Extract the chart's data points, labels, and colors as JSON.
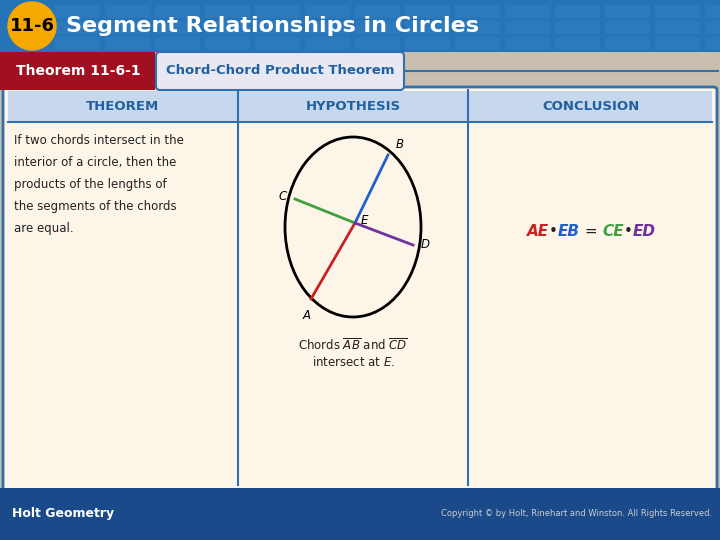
{
  "title": "Segment Relationships in Circles",
  "title_badge": "11-6",
  "header_bg": "#2574b8",
  "badge_color": "#f5a800",
  "theorem_label": "Theorem 11-6-1",
  "theorem_label_bg": "#a01020",
  "theorem_name": "Chord-Chord Product Theorem",
  "col_headers": [
    "THEOREM",
    "HYPOTHESIS",
    "CONCLUSION"
  ],
  "col_header_color": "#2060a0",
  "col_header_bg": "#d0dff0",
  "table_bg": "#fdf5e8",
  "theorem_text_lines": [
    "If two chords intersect in the",
    "interior of a circle, then the",
    "products of the lengths of",
    "the segments of the chords",
    "are equal."
  ],
  "footer_text": "Holt Geometry",
  "footer_bg": "#1a4a8a",
  "copyright_text": "Copyright © by Holt, Rinehart and Winston. All Rights Reserved.",
  "color_AE": "#cc2020",
  "color_EB": "#2060cc",
  "color_CE": "#40a040",
  "color_ED": "#7030a0",
  "outside_bg": "#c8bfae",
  "white_area_bg": "#f5f0e8"
}
